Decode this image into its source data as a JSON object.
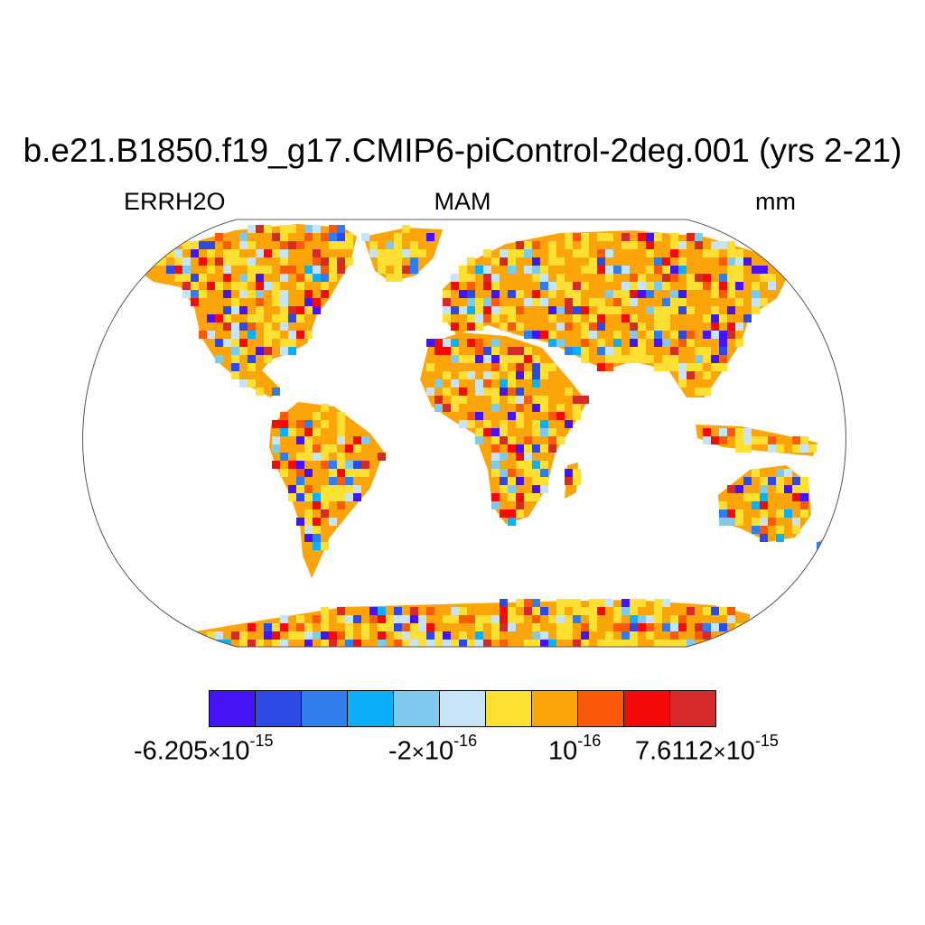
{
  "title": "b.e21.B1850.f19_g17.CMIP6-piControl-2deg.001 (yrs 2-21)",
  "subtitle_left": "ERRH2O",
  "subtitle_center": "MAM",
  "subtitle_right": "mm",
  "colorbar": {
    "colors": [
      "#4414f5",
      "#2e4ae6",
      "#2f7eec",
      "#0caff8",
      "#7ecaef",
      "#c6e4f6",
      "#fde032",
      "#fca50a",
      "#fb5a0a",
      "#f50a0a",
      "#d42a2a"
    ],
    "labels": [
      {
        "mantissa": "-6.205",
        "times": "×",
        "base": "10",
        "exp": "-15"
      },
      {
        "mantissa": "-2",
        "times": "×",
        "base": "10",
        "exp": "-16"
      },
      {
        "mantissa": "",
        "times": "",
        "base": "10",
        "exp": "-16"
      },
      {
        "mantissa": "7.6112",
        "times": "×",
        "base": "10",
        "exp": "-15"
      }
    ]
  },
  "map": {
    "projection": "Robinson",
    "land_fill": "#fca50a"
  }
}
